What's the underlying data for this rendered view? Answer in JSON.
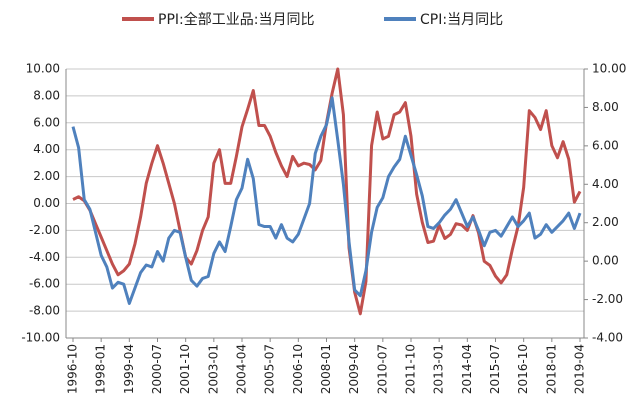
{
  "chart_data": {
    "type": "line",
    "categories": [
      "1996-10",
      null,
      null,
      null,
      null,
      "1998-01",
      null,
      null,
      null,
      null,
      "1999-04",
      null,
      null,
      null,
      null,
      "2000-07",
      null,
      null,
      null,
      null,
      "2001-10",
      null,
      null,
      null,
      null,
      "2003-01",
      null,
      null,
      null,
      null,
      "2004-04",
      null,
      null,
      null,
      null,
      "2005-07",
      null,
      null,
      null,
      null,
      "2006-10",
      null,
      null,
      null,
      null,
      "2008-01",
      null,
      null,
      null,
      null,
      "2009-04",
      null,
      null,
      null,
      null,
      "2010-07",
      null,
      null,
      null,
      null,
      "2011-10",
      null,
      null,
      null,
      null,
      "2013-01",
      null,
      null,
      null,
      null,
      "2014-04",
      null,
      null,
      null,
      null,
      "2015-07",
      null,
      null,
      null,
      null,
      "2016-10",
      null,
      null,
      null,
      null,
      "2018-01",
      null,
      null,
      null,
      null,
      "2019-04"
    ],
    "series": [
      {
        "name": "PPI:全部工业品:当月同比",
        "color": "#c0504d",
        "axis": "y",
        "values": [
          0.3,
          0.5,
          0.2,
          -0.5,
          -1.5,
          -2.5,
          -3.5,
          -4.5,
          -5.3,
          -5.0,
          -4.5,
          -3.0,
          -1.0,
          1.5,
          3.0,
          4.3,
          3.0,
          1.5,
          0.0,
          -2.0,
          -4.0,
          -4.5,
          -3.5,
          -2.0,
          -1.0,
          3.0,
          4.0,
          1.5,
          1.5,
          3.5,
          5.7,
          7.0,
          8.4,
          5.8,
          5.8,
          5.0,
          3.8,
          2.8,
          2.0,
          3.5,
          2.8,
          3.0,
          2.9,
          2.5,
          3.2,
          6.0,
          8.2,
          10.0,
          6.6,
          -3.3,
          -6.6,
          -8.2,
          -5.8,
          4.3,
          6.8,
          4.8,
          5.0,
          6.6,
          6.8,
          7.5,
          5.0,
          0.7,
          -1.4,
          -2.9,
          -2.8,
          -1.6,
          -2.6,
          -2.3,
          -1.5,
          -1.6,
          -2.0,
          -0.9,
          -2.2,
          -4.3,
          -4.6,
          -5.4,
          -5.9,
          -5.3,
          -3.4,
          -1.7,
          1.2,
          6.9,
          6.4,
          5.5,
          6.9,
          4.3,
          3.4,
          4.6,
          3.3,
          0.1,
          0.9
        ]
      },
      {
        "name": "CPI:当月同比",
        "color": "#4f81bd",
        "axis": "y2",
        "values": [
          7.0,
          5.9,
          3.2,
          2.7,
          1.5,
          0.3,
          -0.3,
          -1.4,
          -1.1,
          -1.2,
          -2.2,
          -1.4,
          -0.6,
          -0.2,
          -0.3,
          0.5,
          0.0,
          1.2,
          1.6,
          1.5,
          0.2,
          -1.0,
          -1.3,
          -0.9,
          -0.8,
          0.4,
          1.0,
          0.5,
          1.8,
          3.2,
          3.8,
          5.3,
          4.3,
          1.9,
          1.8,
          1.8,
          1.2,
          1.9,
          1.2,
          1.0,
          1.4,
          2.2,
          3.0,
          5.6,
          6.5,
          7.1,
          8.5,
          6.3,
          4.0,
          1.0,
          -1.5,
          -1.8,
          -0.5,
          1.5,
          2.8,
          3.3,
          4.4,
          4.9,
          5.3,
          6.5,
          5.5,
          4.5,
          3.4,
          1.8,
          1.7,
          2.0,
          2.4,
          2.7,
          3.2,
          2.5,
          1.8,
          2.3,
          1.6,
          0.8,
          1.5,
          1.6,
          1.3,
          1.8,
          2.3,
          1.8,
          2.1,
          2.5,
          1.2,
          1.4,
          1.9,
          1.5,
          1.8,
          2.1,
          2.5,
          1.7,
          2.5
        ]
      }
    ],
    "ylim": [
      -10,
      10
    ],
    "yticks": [
      {
        "value": -10,
        "label": "-10.00"
      },
      {
        "value": -8,
        "label": "-8.00"
      },
      {
        "value": -6,
        "label": "-6.00"
      },
      {
        "value": -4,
        "label": "-4.00"
      },
      {
        "value": -2,
        "label": "-2.00"
      },
      {
        "value": 0,
        "label": "0.00"
      },
      {
        "value": 2,
        "label": "2.00"
      },
      {
        "value": 4,
        "label": "4.00"
      },
      {
        "value": 6,
        "label": "6.00"
      },
      {
        "value": 8,
        "label": "8.00"
      },
      {
        "value": 10,
        "label": "10.00"
      }
    ],
    "y2lim": [
      -4,
      10
    ],
    "y2ticks": [
      {
        "value": -4,
        "label": "-4.00"
      },
      {
        "value": -2,
        "label": "-2.00"
      },
      {
        "value": 0,
        "label": "0.00"
      },
      {
        "value": 2,
        "label": "2.00"
      },
      {
        "value": 4,
        "label": "4.00"
      },
      {
        "value": 6,
        "label": "6.00"
      },
      {
        "value": 8,
        "label": "8.00"
      },
      {
        "value": 10,
        "label": "10.00"
      }
    ],
    "grid": true,
    "legend": "top"
  }
}
